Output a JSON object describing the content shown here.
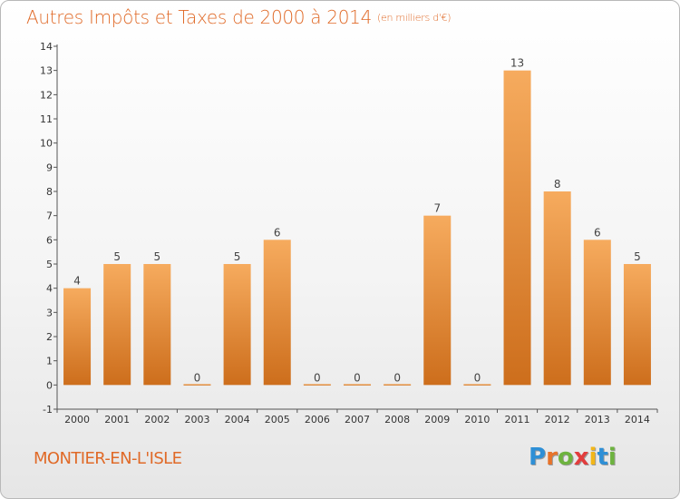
{
  "header": {
    "title": "Autres Impôts et Taxes de 2000 à 2014",
    "unit": "(en milliers d'€)"
  },
  "footer": {
    "commune": "MONTIER-EN-L'ISLE",
    "logo_letters": [
      "P",
      "r",
      "o",
      "x",
      "i",
      "t",
      "i"
    ],
    "logo_colors": [
      "#2e8fd6",
      "#e8732a",
      "#6db33f",
      "#e23d3d",
      "#f2b619",
      "#2e8fd6",
      "#6db33f"
    ]
  },
  "colors": {
    "bar_top": "#f6ab5e",
    "bar_bottom": "#cd6e1c",
    "title": "#e06a28"
  },
  "chart_data": {
    "type": "bar",
    "categories": [
      "2000",
      "2001",
      "2002",
      "2003",
      "2004",
      "2005",
      "2006",
      "2007",
      "2008",
      "2009",
      "2010",
      "2011",
      "2012",
      "2013",
      "2014"
    ],
    "values": [
      4,
      5,
      5,
      0,
      5,
      6,
      0,
      0,
      0,
      7,
      0,
      13,
      8,
      6,
      5
    ],
    "ylim": [
      -1,
      14
    ],
    "yticks": [
      -1,
      0,
      1,
      2,
      3,
      4,
      5,
      6,
      7,
      8,
      9,
      10,
      11,
      12,
      13,
      14
    ],
    "grid": false,
    "xlabel": "",
    "ylabel": ""
  }
}
